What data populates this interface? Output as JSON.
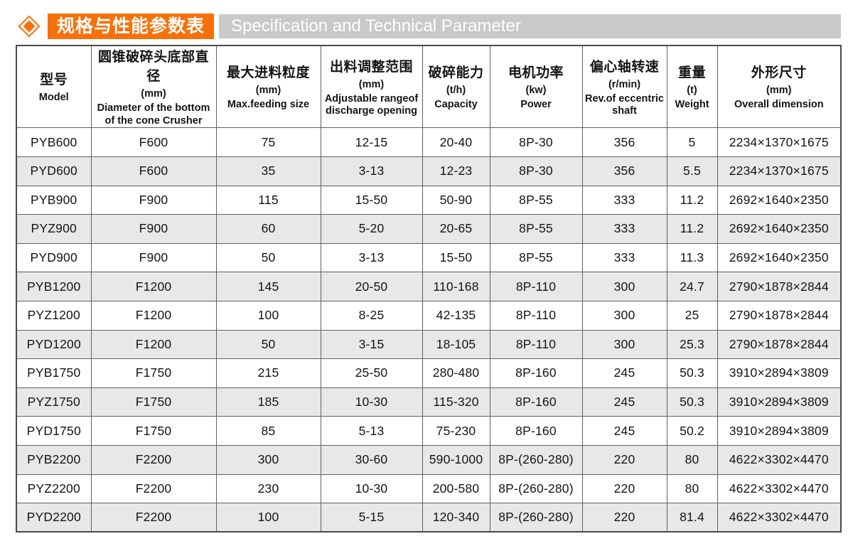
{
  "header": {
    "title_cn": "规格与性能参数表",
    "title_en": "Specification and Technical Parameter"
  },
  "colors": {
    "accent_orange": "#F7700A",
    "bar_gray": "#C9C9C9",
    "row_alt_gray": "#E8E8E8",
    "border_gray": "#606060"
  },
  "icons": {
    "diamond_icon": "orange diamond bullet"
  },
  "table": {
    "columns": [
      {
        "cn": "型号",
        "unit": "",
        "en": "Model"
      },
      {
        "cn": "圆锥破碎头底部直径",
        "unit": "(mm)",
        "en": "Diameter of the bottom of the cone Crusher"
      },
      {
        "cn": "最大进料粒度",
        "unit": "(mm)",
        "en": "Max.feeding size"
      },
      {
        "cn": "出料调整范围",
        "unit": "(mm)",
        "en": "Adjustable rangeof discharge opening"
      },
      {
        "cn": "破碎能力",
        "unit": "(t/h)",
        "en": "Capacity"
      },
      {
        "cn": "电机功率",
        "unit": "(kw)",
        "en": "Power"
      },
      {
        "cn": "偏心轴转速",
        "unit": "(r/min)",
        "en": "Rev.of eccentric shaft"
      },
      {
        "cn": "重量",
        "unit": "(t)",
        "en": "Weight"
      },
      {
        "cn": "外形尺寸",
        "unit": "(mm)",
        "en": "Overall dimension"
      }
    ],
    "rows": [
      [
        "PYB600",
        "F600",
        "75",
        "12-15",
        "20-40",
        "8P-30",
        "356",
        "5",
        "2234×1370×1675"
      ],
      [
        "PYD600",
        "F600",
        "35",
        "3-13",
        "12-23",
        "8P-30",
        "356",
        "5.5",
        "2234×1370×1675"
      ],
      [
        "PYB900",
        "F900",
        "115",
        "15-50",
        "50-90",
        "8P-55",
        "333",
        "11.2",
        "2692×1640×2350"
      ],
      [
        "PYZ900",
        "F900",
        "60",
        "5-20",
        "20-65",
        "8P-55",
        "333",
        "11.2",
        "2692×1640×2350"
      ],
      [
        "PYD900",
        "F900",
        "50",
        "3-13",
        "15-50",
        "8P-55",
        "333",
        "11.3",
        "2692×1640×2350"
      ],
      [
        "PYB1200",
        "F1200",
        "145",
        "20-50",
        "110-168",
        "8P-110",
        "300",
        "24.7",
        "2790×1878×2844"
      ],
      [
        "PYZ1200",
        "F1200",
        "100",
        "8-25",
        "42-135",
        "8P-110",
        "300",
        "25",
        "2790×1878×2844"
      ],
      [
        "PYD1200",
        "F1200",
        "50",
        "3-15",
        "18-105",
        "8P-110",
        "300",
        "25.3",
        "2790×1878×2844"
      ],
      [
        "PYB1750",
        "F1750",
        "215",
        "25-50",
        "280-480",
        "8P-160",
        "245",
        "50.3",
        "3910×2894×3809"
      ],
      [
        "PYZ1750",
        "F1750",
        "185",
        "10-30",
        "115-320",
        "8P-160",
        "245",
        "50.3",
        "3910×2894×3809"
      ],
      [
        "PYD1750",
        "F1750",
        "85",
        "5-13",
        "75-230",
        "8P-160",
        "245",
        "50.2",
        "3910×2894×3809"
      ],
      [
        "PYB2200",
        "F2200",
        "300",
        "30-60",
        "590-1000",
        "8P-(260-280)",
        "220",
        "80",
        "4622×3302×4470"
      ],
      [
        "PYZ2200",
        "F2200",
        "230",
        "10-30",
        "200-580",
        "8P-(260-280)",
        "220",
        "80",
        "4622×3302×4470"
      ],
      [
        "PYD2200",
        "F2200",
        "100",
        "5-15",
        "120-340",
        "8P-(260-280)",
        "220",
        "81.4",
        "4622×3302×4470"
      ]
    ]
  }
}
